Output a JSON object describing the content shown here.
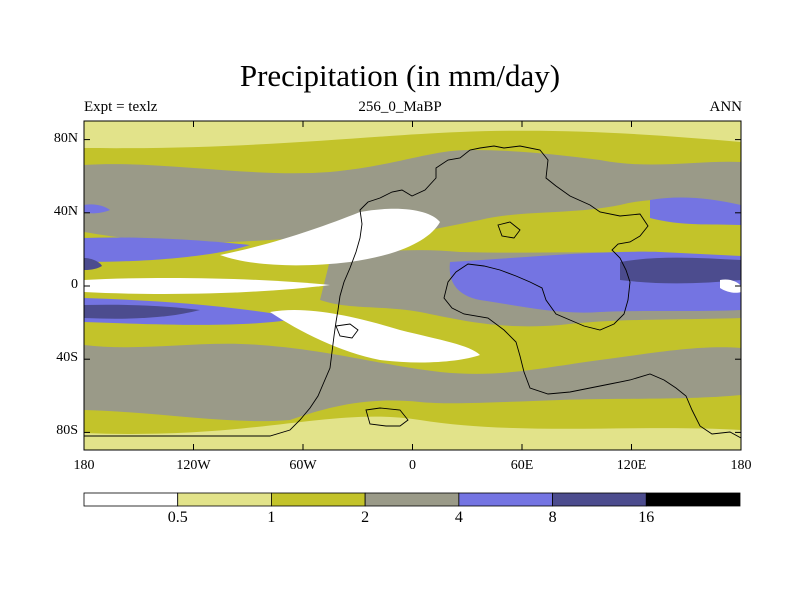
{
  "title": "Precipitation (in mm/day)",
  "subtitle_left": "Expt = texlz",
  "subtitle_center": "256_0_MaBP",
  "subtitle_right": "ANN",
  "lat_ticks": [
    {
      "label": "80N",
      "lat": 80
    },
    {
      "label": "40N",
      "lat": 40
    },
    {
      "label": "0",
      "lat": 0
    },
    {
      "label": "40S",
      "lat": -40
    },
    {
      "label": "80S",
      "lat": -80
    }
  ],
  "lon_ticks": [
    {
      "label": "180",
      "lon": -180
    },
    {
      "label": "120W",
      "lon": -120
    },
    {
      "label": "60W",
      "lon": -60
    },
    {
      "label": "0",
      "lon": 0
    },
    {
      "label": "60E",
      "lon": 60
    },
    {
      "label": "120E",
      "lon": 120
    },
    {
      "label": "180",
      "lon": 180
    }
  ],
  "colorbar": {
    "colors": [
      "#ffffff",
      "#e2e38a",
      "#c3c32a",
      "#9a9a88",
      "#7474e2",
      "#4c4c8e",
      "#000000"
    ],
    "labels": [
      "0.5",
      "1",
      "2",
      "4",
      "8",
      "16"
    ]
  },
  "legend_colors": {
    "white": "#ffffff",
    "lightyellow": "#e2e38a",
    "olive": "#c3c32a",
    "gray": "#9a9a88",
    "blue": "#7474e2",
    "darkblue": "#4c4c8e"
  }
}
